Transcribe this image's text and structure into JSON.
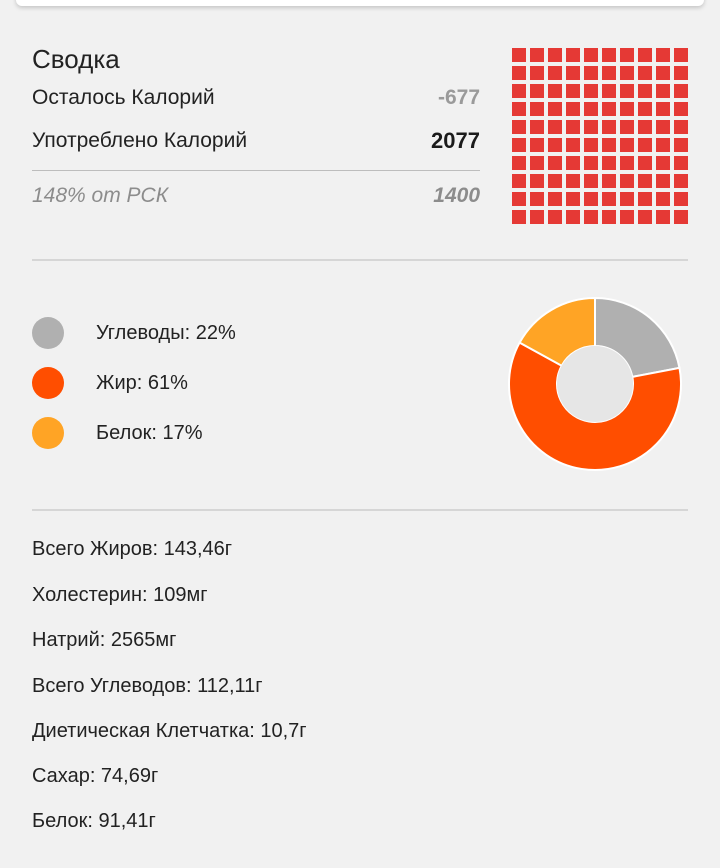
{
  "summary": {
    "title": "Сводка",
    "remaining_label": "Осталось Калорий",
    "remaining_value": "-677",
    "consumed_label": "Употреблено Калорий",
    "consumed_value": "2077",
    "rsk_label": "148% от РСК",
    "rsk_value": "1400"
  },
  "grid": {
    "count": 100,
    "color": "#e53935"
  },
  "macros": {
    "items": [
      {
        "label": "Углеводы: 22%",
        "percent": 22,
        "color": "#b0b0b0"
      },
      {
        "label": "Жир: 61%",
        "percent": 61,
        "color": "#ff4e00"
      },
      {
        "label": "Белок: 17%",
        "percent": 17,
        "color": "#ffa425"
      }
    ],
    "hole_color": "#e6e6e6"
  },
  "nutrients": [
    "Всего Жиров: 143,46г",
    "Холестерин: 109мг",
    "Натрий: 2565мг",
    "Всего Углеводов: 112,11г",
    "Диетическая Клетчатка: 10,7г",
    "Сахар: 74,69г",
    "Белок: 91,41г"
  ]
}
